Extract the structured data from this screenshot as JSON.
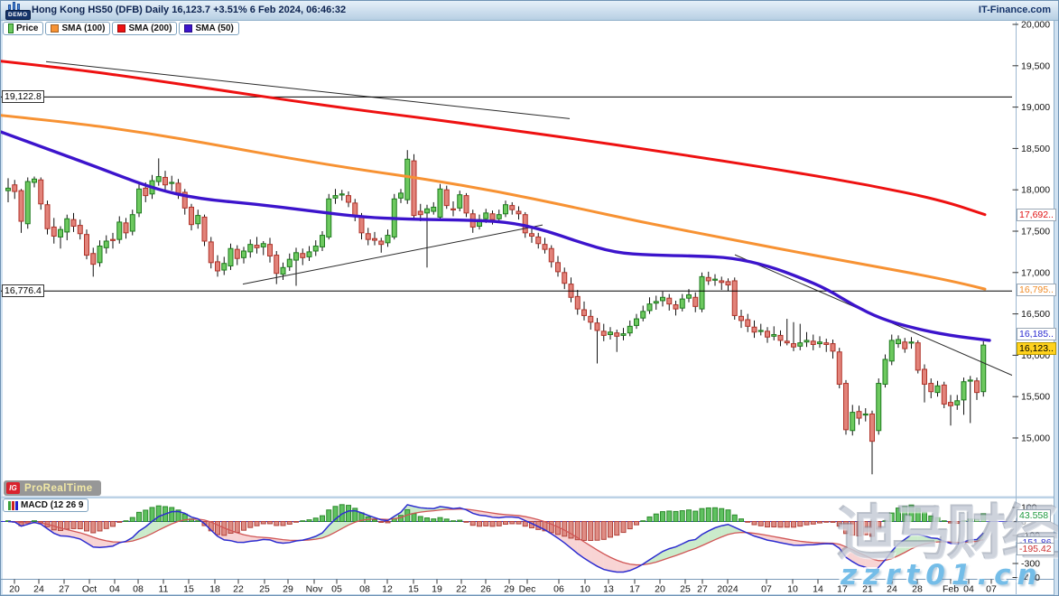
{
  "header": {
    "demo_label": "DEMO",
    "title": "Hong Kong HS50 (DFB) Daily 16,123.7 +3.51% 6 Feb 2024, 06:46:32",
    "brand": "IT-Finance.com"
  },
  "legend": {
    "price_label": "Price",
    "sma100_label": "SMA (100)",
    "sma200_label": "SMA (200)",
    "sma50_label": "SMA (50)"
  },
  "macd": {
    "legend_label": "MACD (12 26 9",
    "params": {
      "fast": 12,
      "slow": 26,
      "signal": 9
    },
    "axis_ticks": [
      100,
      0,
      -100,
      -300,
      -400
    ],
    "value_labels": [
      {
        "text": "43.558",
        "value": 43.558,
        "kind": "hist"
      },
      {
        "text": "-151.86",
        "value": -151.86,
        "kind": "macd"
      },
      {
        "text": "-195.42",
        "value": -195.42,
        "kind": "signal"
      }
    ]
  },
  "prt": {
    "ig": "IG",
    "name": "ProRealTime"
  },
  "watermarks": {
    "cn": "迪马财经",
    "url": "zzrt01.cn"
  },
  "colors": {
    "up_fill": "#6dc95f",
    "up_stroke": "#1c7a1c",
    "down_fill": "#e2837a",
    "down_stroke": "#b03228",
    "wick": "#111111",
    "sma50": "#3c14cc",
    "sma100": "#f79233",
    "sma200": "#ee1111",
    "macd_line": "#2c2cd0",
    "signal_line": "#d05555",
    "hist_up": "#5fc160",
    "hist_up_stroke": "#2c8a2c",
    "hist_down": "#df8d85",
    "hist_down_stroke": "#b2423a",
    "fill_pos": "rgba(140,210,140,0.45)",
    "fill_neg": "rgba(240,160,160,0.45)",
    "trendline": "#2a2a2a",
    "hline": "#000000",
    "current_bg": "#ffd21e",
    "axis_line": "#9db8d0",
    "frame": "#bcd2e6"
  },
  "price_axis": {
    "ticks": [
      20000,
      19500,
      19000,
      18500,
      18000,
      17500,
      17000,
      16500,
      16000,
      15500,
      15000
    ],
    "line_labels": [
      {
        "text": "19,122.8",
        "price": 19122.8
      },
      {
        "text": "16,776.4",
        "price": 16776.4
      }
    ],
    "right_labels": [
      {
        "text": "17,692..",
        "price": 17692,
        "kind": "sma200"
      },
      {
        "text": "16,795..",
        "price": 16795,
        "kind": "sma100"
      },
      {
        "text": "16,185..",
        "price": 16185,
        "kind": "sma50"
      },
      {
        "text": "16,123..",
        "price": 16123,
        "kind": "last"
      }
    ]
  },
  "x_axis": {
    "labels": [
      [
        "20",
        15
      ],
      [
        "24",
        42
      ],
      [
        "27",
        70
      ],
      [
        "Oct",
        98
      ],
      [
        "04",
        126
      ],
      [
        "08",
        152
      ],
      [
        "11",
        180
      ],
      [
        "15",
        208
      ],
      [
        "18",
        237
      ],
      [
        "22",
        263
      ],
      [
        "25",
        292
      ],
      [
        "29",
        318
      ],
      [
        "Nov",
        347
      ],
      [
        "05",
        372
      ],
      [
        "08",
        403
      ],
      [
        "12",
        428
      ],
      [
        "15",
        457
      ],
      [
        "19",
        483
      ],
      [
        "22",
        510
      ],
      [
        "26",
        537
      ],
      [
        "29",
        563
      ],
      [
        "Dec",
        583
      ],
      [
        "06",
        618
      ],
      [
        "10",
        647
      ],
      [
        "13",
        673
      ],
      [
        "17",
        702
      ],
      [
        "20",
        730
      ],
      [
        "25",
        758
      ],
      [
        "27",
        777
      ],
      [
        "2024",
        805
      ],
      [
        "07",
        848
      ],
      [
        "10",
        877
      ],
      [
        "14",
        905
      ],
      [
        "17",
        932
      ],
      [
        "21",
        960
      ],
      [
        "24",
        987
      ],
      [
        "28",
        1015
      ],
      [
        "Feb",
        1052
      ],
      [
        "04",
        1072
      ],
      [
        "07",
        1097
      ]
    ]
  },
  "chart_data": {
    "type": "candlestick",
    "title": "Hong Kong HS50 (DFB) Daily",
    "ylim": [
      14500,
      20000
    ],
    "candles": [
      [
        17990,
        18140,
        17850,
        18020
      ],
      [
        18060,
        18120,
        17890,
        17980
      ],
      [
        17990,
        18010,
        17480,
        17620
      ],
      [
        17590,
        18150,
        17530,
        18100
      ],
      [
        18090,
        18160,
        18030,
        18130
      ],
      [
        18120,
        18150,
        17760,
        17830
      ],
      [
        17820,
        17870,
        17460,
        17530
      ],
      [
        17550,
        17660,
        17350,
        17440
      ],
      [
        17430,
        17560,
        17290,
        17520
      ],
      [
        17490,
        17700,
        17390,
        17650
      ],
      [
        17640,
        17720,
        17490,
        17560
      ],
      [
        17570,
        17640,
        17400,
        17470
      ],
      [
        17460,
        17520,
        17160,
        17210
      ],
      [
        17230,
        17300,
        16950,
        17100
      ],
      [
        17120,
        17390,
        17070,
        17320
      ],
      [
        17300,
        17450,
        17230,
        17380
      ],
      [
        17400,
        17480,
        17290,
        17390
      ],
      [
        17400,
        17680,
        17350,
        17610
      ],
      [
        17600,
        17660,
        17410,
        17480
      ],
      [
        17500,
        17760,
        17450,
        17700
      ],
      [
        17720,
        18080,
        17670,
        18010
      ],
      [
        18020,
        18090,
        17850,
        17930
      ],
      [
        17950,
        18180,
        17890,
        18110
      ],
      [
        18100,
        18380,
        18050,
        18160
      ],
      [
        18150,
        18230,
        17990,
        18060
      ],
      [
        18080,
        18170,
        17990,
        18090
      ],
      [
        18080,
        18130,
        17890,
        17960
      ],
      [
        17970,
        18010,
        17700,
        17780
      ],
      [
        17790,
        17830,
        17510,
        17580
      ],
      [
        17590,
        17760,
        17530,
        17690
      ],
      [
        17670,
        17700,
        17320,
        17380
      ],
      [
        17370,
        17430,
        17050,
        17120
      ],
      [
        17130,
        17210,
        16950,
        17020
      ],
      [
        17030,
        17190,
        16970,
        17110
      ],
      [
        17080,
        17350,
        17030,
        17290
      ],
      [
        17280,
        17330,
        17090,
        17170
      ],
      [
        17180,
        17310,
        17110,
        17260
      ],
      [
        17250,
        17400,
        17180,
        17340
      ],
      [
        17330,
        17430,
        17230,
        17300
      ],
      [
        17310,
        17380,
        17210,
        17350
      ],
      [
        17340,
        17420,
        17120,
        17200
      ],
      [
        17210,
        17260,
        16860,
        16990
      ],
      [
        16980,
        17120,
        16910,
        17060
      ],
      [
        17070,
        17230,
        17020,
        17160
      ],
      [
        17150,
        17300,
        16840,
        17240
      ],
      [
        17230,
        17290,
        17090,
        17180
      ],
      [
        17190,
        17320,
        17140,
        17250
      ],
      [
        17260,
        17390,
        17200,
        17320
      ],
      [
        17310,
        17500,
        17260,
        17450
      ],
      [
        17430,
        17950,
        17400,
        17890
      ],
      [
        17900,
        18010,
        17830,
        17930
      ],
      [
        17940,
        18000,
        17870,
        17950
      ],
      [
        17930,
        17980,
        17790,
        17850
      ],
      [
        17840,
        17890,
        17620,
        17680
      ],
      [
        17670,
        17720,
        17400,
        17480
      ],
      [
        17470,
        17540,
        17330,
        17400
      ],
      [
        17410,
        17490,
        17330,
        17390
      ],
      [
        17380,
        17420,
        17240,
        17340
      ],
      [
        17360,
        17520,
        17310,
        17450
      ],
      [
        17430,
        17950,
        17400,
        17890
      ],
      [
        17900,
        18010,
        17840,
        17960
      ],
      [
        17880,
        18480,
        17830,
        18370
      ],
      [
        18350,
        18430,
        17640,
        17690
      ],
      [
        17740,
        17830,
        17620,
        17700
      ],
      [
        17720,
        17820,
        17060,
        17770
      ],
      [
        17740,
        17850,
        17700,
        17790
      ],
      [
        17670,
        18070,
        17620,
        18010
      ],
      [
        18000,
        18050,
        17770,
        17810
      ],
      [
        17770,
        17860,
        17680,
        17760
      ],
      [
        17780,
        17990,
        17740,
        17940
      ],
      [
        17930,
        17960,
        17670,
        17720
      ],
      [
        17710,
        17760,
        17480,
        17550
      ],
      [
        17560,
        17700,
        17520,
        17640
      ],
      [
        17650,
        17770,
        17600,
        17720
      ],
      [
        17710,
        17750,
        17580,
        17640
      ],
      [
        17650,
        17760,
        17610,
        17700
      ],
      [
        17710,
        17870,
        17670,
        17820
      ],
      [
        17810,
        17850,
        17700,
        17760
      ],
      [
        17740,
        17800,
        17640,
        17710
      ],
      [
        17700,
        17730,
        17420,
        17480
      ],
      [
        17470,
        17530,
        17360,
        17440
      ],
      [
        17430,
        17480,
        17290,
        17350
      ],
      [
        17340,
        17420,
        17230,
        17280
      ],
      [
        17290,
        17330,
        17060,
        17130
      ],
      [
        17120,
        17200,
        16950,
        17010
      ],
      [
        17000,
        17060,
        16800,
        16870
      ],
      [
        16860,
        16940,
        16640,
        16700
      ],
      [
        16710,
        16790,
        16490,
        16560
      ],
      [
        16550,
        16650,
        16420,
        16480
      ],
      [
        16470,
        16550,
        16310,
        16400
      ],
      [
        16390,
        16450,
        15900,
        16300
      ],
      [
        16290,
        16380,
        16170,
        16240
      ],
      [
        16250,
        16340,
        16190,
        16280
      ],
      [
        16270,
        16310,
        16040,
        16230
      ],
      [
        16240,
        16330,
        16180,
        16260
      ],
      [
        16270,
        16420,
        16230,
        16350
      ],
      [
        16360,
        16500,
        16320,
        16440
      ],
      [
        16450,
        16600,
        16410,
        16530
      ],
      [
        16540,
        16700,
        16500,
        16620
      ],
      [
        16630,
        16720,
        16550,
        16650
      ],
      [
        16660,
        16770,
        16590,
        16700
      ],
      [
        16690,
        16740,
        16540,
        16620
      ],
      [
        16610,
        16660,
        16480,
        16560
      ],
      [
        16570,
        16740,
        16530,
        16680
      ],
      [
        16690,
        16800,
        16640,
        16730
      ],
      [
        16700,
        16760,
        16520,
        16590
      ],
      [
        16560,
        17000,
        16520,
        16950
      ],
      [
        16940,
        17010,
        16850,
        16900
      ],
      [
        16910,
        16980,
        16840,
        16920
      ],
      [
        16900,
        16950,
        16790,
        16880
      ],
      [
        16890,
        16930,
        16780,
        16850
      ],
      [
        16900,
        16940,
        16430,
        16480
      ],
      [
        16470,
        16550,
        16330,
        16420
      ],
      [
        16430,
        16500,
        16280,
        16350
      ],
      [
        16340,
        16420,
        16210,
        16280
      ],
      [
        16290,
        16380,
        16240,
        16300
      ],
      [
        16290,
        16340,
        16150,
        16220
      ],
      [
        16230,
        16350,
        16180,
        16250
      ],
      [
        16240,
        16300,
        16110,
        16180
      ],
      [
        16170,
        16440,
        16120,
        16150
      ],
      [
        16140,
        16400,
        16050,
        16100
      ],
      [
        16110,
        16380,
        16060,
        16150
      ],
      [
        16160,
        16280,
        16100,
        16180
      ],
      [
        16170,
        16250,
        16060,
        16130
      ],
      [
        16140,
        16230,
        16090,
        16160
      ],
      [
        16150,
        16200,
        16040,
        16130
      ],
      [
        16140,
        16190,
        15960,
        16050
      ],
      [
        16040,
        16090,
        15600,
        15650
      ],
      [
        15660,
        15700,
        15040,
        15100
      ],
      [
        15090,
        15400,
        15030,
        15310
      ],
      [
        15320,
        15390,
        15160,
        15240
      ],
      [
        15290,
        15360,
        15200,
        15290
      ],
      [
        15290,
        15330,
        14560,
        14960
      ],
      [
        15090,
        15720,
        15040,
        15660
      ],
      [
        15650,
        16010,
        15610,
        15950
      ],
      [
        15930,
        16250,
        15880,
        16180
      ],
      [
        16140,
        16240,
        16090,
        16190
      ],
      [
        16160,
        16210,
        16030,
        16080
      ],
      [
        16150,
        16220,
        16080,
        16160
      ],
      [
        16150,
        16180,
        15780,
        15820
      ],
      [
        15830,
        15890,
        15430,
        15650
      ],
      [
        15660,
        15720,
        15480,
        15560
      ],
      [
        15550,
        15690,
        15500,
        15630
      ],
      [
        15640,
        15680,
        15360,
        15410
      ],
      [
        15430,
        15520,
        15150,
        15390
      ],
      [
        15400,
        15520,
        15340,
        15450
      ],
      [
        15460,
        15730,
        15280,
        15680
      ],
      [
        15690,
        15750,
        15180,
        15700
      ],
      [
        15690,
        15730,
        15460,
        15550
      ],
      [
        15560,
        16170,
        15500,
        16123
      ]
    ],
    "sma200": [
      [
        0,
        19555
      ],
      [
        80,
        19460
      ],
      [
        160,
        19340
      ],
      [
        240,
        19210
      ],
      [
        320,
        19080
      ],
      [
        400,
        18960
      ],
      [
        480,
        18850
      ],
      [
        560,
        18730
      ],
      [
        640,
        18610
      ],
      [
        720,
        18480
      ],
      [
        800,
        18350
      ],
      [
        880,
        18210
      ],
      [
        960,
        18060
      ],
      [
        1040,
        17880
      ],
      [
        1090,
        17700
      ]
    ],
    "sma100": [
      [
        0,
        18900
      ],
      [
        80,
        18810
      ],
      [
        160,
        18690
      ],
      [
        240,
        18540
      ],
      [
        320,
        18380
      ],
      [
        400,
        18240
      ],
      [
        470,
        18130
      ],
      [
        550,
        17980
      ],
      [
        630,
        17800
      ],
      [
        710,
        17610
      ],
      [
        790,
        17440
      ],
      [
        870,
        17270
      ],
      [
        950,
        17110
      ],
      [
        1020,
        16970
      ],
      [
        1060,
        16880
      ],
      [
        1090,
        16800
      ]
    ],
    "sma50": [
      [
        0,
        18700
      ],
      [
        50,
        18500
      ],
      [
        110,
        18260
      ],
      [
        170,
        18010
      ],
      [
        220,
        17890
      ],
      [
        280,
        17830
      ],
      [
        340,
        17750
      ],
      [
        400,
        17670
      ],
      [
        450,
        17645
      ],
      [
        510,
        17635
      ],
      [
        560,
        17615
      ],
      [
        600,
        17520
      ],
      [
        640,
        17370
      ],
      [
        680,
        17240
      ],
      [
        720,
        17210
      ],
      [
        770,
        17200
      ],
      [
        810,
        17180
      ],
      [
        850,
        17080
      ],
      [
        885,
        16940
      ],
      [
        915,
        16800
      ],
      [
        945,
        16600
      ],
      [
        975,
        16440
      ],
      [
        1010,
        16330
      ],
      [
        1050,
        16240
      ],
      [
        1095,
        16180
      ]
    ],
    "trendlines": [
      [
        [
          50,
          19550
        ],
        [
          630,
          18860
        ]
      ],
      [
        [
          268,
          16860
        ],
        [
          600,
          17575
        ]
      ],
      [
        [
          813,
          17215
        ],
        [
          1126,
          15730
        ]
      ]
    ]
  }
}
